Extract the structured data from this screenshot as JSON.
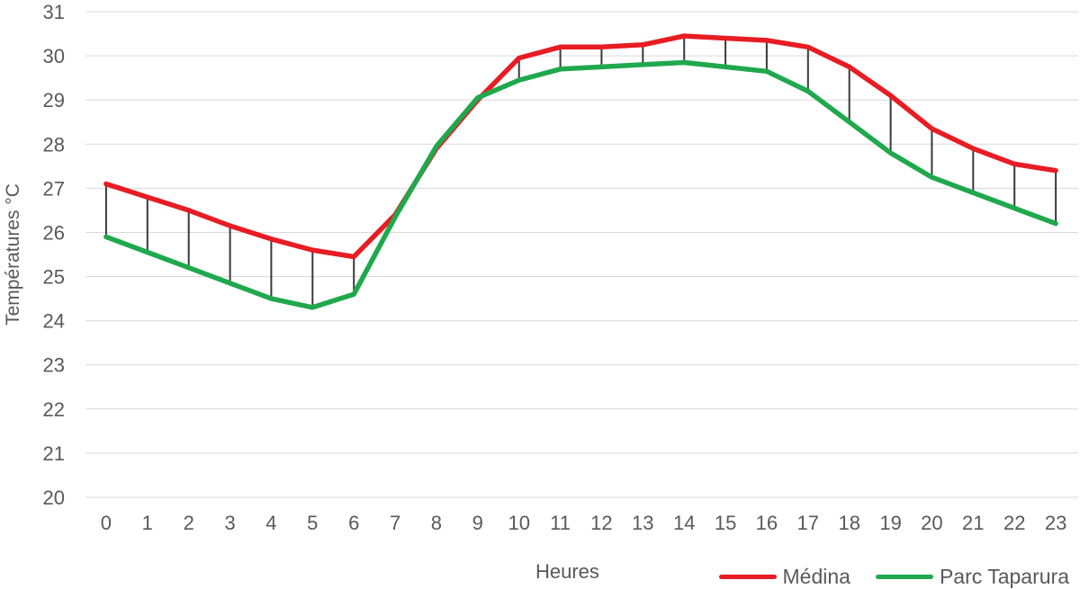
{
  "colors": {
    "background": "#ffffff",
    "grid": "#d9d9d9",
    "axis_text": "#595959"
  },
  "chart_data": {
    "type": "line",
    "title": "",
    "xlabel": "Heures",
    "ylabel": "Températures °C",
    "ylim": [
      20,
      31
    ],
    "y_ticks": [
      20,
      21,
      22,
      23,
      24,
      25,
      26,
      27,
      28,
      29,
      30,
      31
    ],
    "grid": "horizontal",
    "legend_position": "bottom-right",
    "categories": [
      "0",
      "1",
      "2",
      "3",
      "4",
      "5",
      "6",
      "7",
      "8",
      "9",
      "10",
      "11",
      "12",
      "13",
      "14",
      "15",
      "16",
      "17",
      "18",
      "19",
      "20",
      "21",
      "22",
      "23"
    ],
    "series": [
      {
        "name": "Médina",
        "color": "#e81c23",
        "values": [
          27.1,
          26.8,
          26.5,
          26.15,
          25.85,
          25.6,
          25.45,
          26.4,
          27.9,
          29.0,
          29.95,
          30.2,
          30.2,
          30.25,
          30.45,
          30.4,
          30.35,
          30.2,
          29.75,
          29.1,
          28.35,
          27.9,
          27.55,
          27.4
        ]
      },
      {
        "name": "Parc Taparura",
        "color": "#1fa84c",
        "values": [
          25.9,
          25.55,
          25.2,
          24.85,
          24.5,
          24.3,
          24.6,
          26.35,
          27.95,
          29.05,
          29.45,
          29.7,
          29.75,
          29.8,
          29.85,
          29.75,
          29.65,
          29.2,
          28.5,
          27.8,
          27.25,
          26.9,
          26.55,
          26.2
        ]
      }
    ],
    "high_low_lines": {
      "enabled": true,
      "color": "#3a3a3a"
    }
  }
}
